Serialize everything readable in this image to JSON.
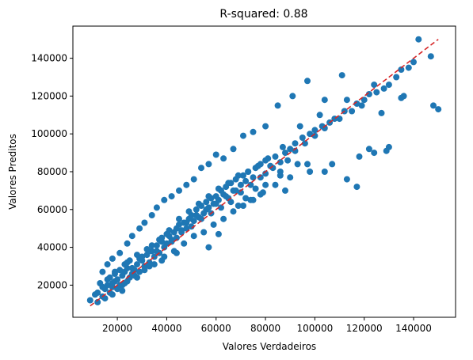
{
  "chart_data": {
    "type": "scatter",
    "title": "R-squared: 0.88",
    "xlabel": "Valores Verdadeiros",
    "ylabel": "Valores Preditos",
    "xlim": [
      2000,
      157000
    ],
    "ylim": [
      3000,
      157000
    ],
    "xticks": [
      20000,
      40000,
      60000,
      80000,
      100000,
      120000,
      140000
    ],
    "yticks": [
      20000,
      40000,
      60000,
      80000,
      100000,
      120000,
      140000
    ],
    "grid": false,
    "point_color": "#1f77b4",
    "reference_line": {
      "from": [
        9000,
        9000
      ],
      "to": [
        150000,
        150000
      ],
      "color": "#d62728",
      "style": "dashed"
    },
    "series": [
      {
        "x": [
          9000,
          11000,
          12000,
          13000,
          14000,
          15000,
          15000,
          16000,
          17000,
          18000,
          18000,
          19000,
          20000,
          20000,
          21000,
          22000,
          22000,
          23000,
          24000,
          24000,
          25000,
          26000,
          27000,
          28000,
          29000,
          30000,
          31000,
          32000,
          33000,
          34000,
          35000,
          36000,
          37000,
          38000,
          39000,
          40000,
          41000,
          42000,
          43000,
          44000,
          45000,
          46000,
          47000,
          48000,
          49000,
          50000,
          51000,
          52000,
          53000,
          54000,
          55000,
          56000,
          57000,
          58000,
          59000,
          60000,
          61000,
          62000,
          63000,
          64000,
          65000,
          66000,
          67000,
          68000,
          70000,
          71000,
          72000,
          73000,
          75000,
          76000,
          78000,
          80000,
          82000,
          84000,
          86000,
          88000,
          90000,
          92000,
          95000,
          98000,
          100000,
          103000,
          106000,
          110000,
          115000,
          120000,
          125000,
          130000,
          135000,
          140000,
          12000,
          14000,
          16000,
          18000,
          19000,
          21000,
          23000,
          25000,
          26000,
          28000,
          30000,
          32000,
          34000,
          36000,
          38000,
          40000,
          42000,
          44000,
          46000,
          48000,
          50000,
          52000,
          54000,
          56000,
          58000,
          60000,
          62000,
          64000,
          66000,
          68000,
          70000,
          72000,
          74000,
          76000,
          78000,
          80000,
          83000,
          86000,
          89000,
          92000,
          96000,
          100000,
          104000,
          108000,
          112000,
          117000,
          122000,
          128000,
          133000,
          138000,
          17000,
          19000,
          22000,
          24000,
          27000,
          29000,
          31000,
          33000,
          35000,
          37000,
          39000,
          41000,
          43000,
          45000,
          47000,
          49000,
          51000,
          53000,
          55000,
          57000,
          59000,
          61000,
          63000,
          65000,
          67000,
          69000,
          71000,
          73000,
          75000,
          77000,
          79000,
          81000,
          84000,
          87000,
          90000,
          94000,
          98000,
          102000,
          107000,
          113000,
          118000,
          124000,
          130000,
          136000,
          14000,
          16000,
          18000,
          21000,
          24000,
          26000,
          29000,
          31000,
          34000,
          36000,
          39000,
          42000,
          45000,
          48000,
          51000,
          54000,
          57000,
          60000,
          63000,
          67000,
          71000,
          75000,
          80000,
          85000,
          91000,
          97000,
          104000,
          111000,
          119000,
          127000,
          135000,
          142000,
          147000,
          148000,
          150000,
          113000,
          117000,
          122000,
          124000,
          129000,
          104000,
          97000,
          88000,
          93000,
          86000,
          80000,
          78000,
          74000,
          69000,
          61000,
          57000,
          44000,
          38000,
          33000,
          28000,
          23000
        ],
        "y": [
          12000,
          15000,
          11000,
          21000,
          14000,
          18000,
          13000,
          20000,
          16000,
          19000,
          15000,
          22000,
          18000,
          23000,
          20000,
          25000,
          17000,
          27000,
          22000,
          29000,
          24000,
          26000,
          28000,
          31000,
          27000,
          33000,
          30000,
          36000,
          32000,
          38000,
          35000,
          41000,
          37000,
          43000,
          40000,
          42000,
          46000,
          44000,
          48000,
          45000,
          52000,
          49000,
          53000,
          50000,
          55000,
          57000,
          54000,
          60000,
          56000,
          62000,
          58000,
          64000,
          61000,
          66000,
          63000,
          67000,
          65000,
          70000,
          68000,
          72000,
          66000,
          74000,
          70000,
          76000,
          73000,
          78000,
          75000,
          80000,
          77000,
          82000,
          84000,
          86000,
          83000,
          88000,
          85000,
          90000,
          92000,
          95000,
          98000,
          100000,
          102000,
          104000,
          106000,
          108000,
          112000,
          118000,
          122000,
          126000,
          134000,
          138000,
          16000,
          19000,
          23000,
          21000,
          26000,
          28000,
          31000,
          33000,
          29000,
          36000,
          35000,
          39000,
          41000,
          38000,
          45000,
          47000,
          43000,
          50000,
          48000,
          53000,
          51000,
          57000,
          55000,
          60000,
          58000,
          63000,
          61000,
          67000,
          64000,
          70000,
          69000,
          66000,
          73000,
          71000,
          77000,
          79000,
          82000,
          80000,
          86000,
          91000,
          95000,
          99000,
          103000,
          108000,
          112000,
          116000,
          121000,
          124000,
          130000,
          135000,
          24000,
          27000,
          20000,
          32000,
          25000,
          34000,
          28000,
          38000,
          31000,
          44000,
          35000,
          49000,
          38000,
          55000,
          42000,
          59000,
          46000,
          63000,
          48000,
          67000,
          52000,
          71000,
          55000,
          74000,
          59000,
          78000,
          62000,
          80000,
          65000,
          83000,
          69000,
          87000,
          73000,
          93000,
          77000,
          104000,
          80000,
          110000,
          84000,
          118000,
          88000,
          126000,
          93000,
          120000,
          27000,
          31000,
          34000,
          37000,
          42000,
          46000,
          50000,
          53000,
          57000,
          61000,
          65000,
          67000,
          70000,
          73000,
          76000,
          82000,
          84000,
          89000,
          87000,
          92000,
          99000,
          101000,
          104000,
          115000,
          120000,
          128000,
          118000,
          131000,
          115000,
          111000,
          119000,
          150000,
          141000,
          115000,
          113000,
          76000,
          72000,
          92000,
          90000,
          91000,
          80000,
          84000,
          70000,
          84000,
          78000,
          73000,
          68000,
          65000,
          62000,
          47000,
          40000,
          37000,
          33000,
          30000,
          24000,
          21000
        ]
      }
    ]
  }
}
